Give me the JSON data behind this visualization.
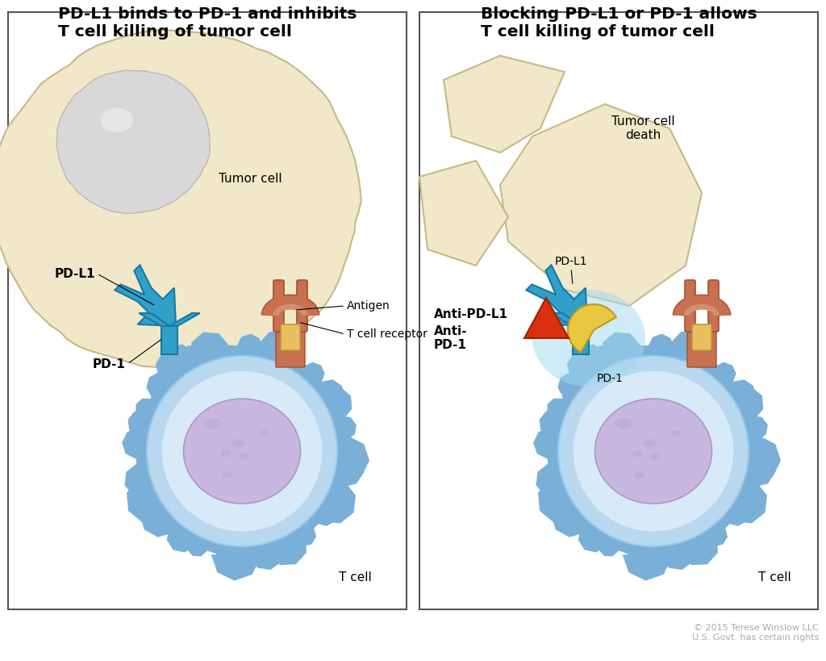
{
  "title_left": "PD-L1 binds to PD-1 and inhibits\nT cell killing of tumor cell",
  "title_right": "Blocking PD-L1 or PD-1 allows\nT cell killing of tumor cell",
  "copyright": "© 2015 Terese Winslow LLC\nU.S. Govt. has certain rights",
  "bg_color": "#ffffff",
  "panel_border_color": "#555555",
  "tumor_cell_fill": "#f0e8c8",
  "tumor_cell_edge": "#c8b888",
  "tumor_nucleus_fill": "#d8d8d8",
  "tumor_nucleus_edge": "#b8b8b8",
  "tcell_outer_fill": "#7ab0d8",
  "tcell_body_fill": "#b8d8f0",
  "tcell_ring_fill": "#d8eaf8",
  "tcell_nucleus_fill": "#c8b8e0",
  "tcell_nucleus_edge": "#a898c8",
  "pdl1_fill": "#30a0c8",
  "pdl1_edge": "#1878a0",
  "pd1_fill": "#30a0c8",
  "pd1_edge": "#1878a0",
  "receptor_fill": "#c87050",
  "receptor_edge": "#a05030",
  "receptor_inner": "#d09070",
  "antigen_fill": "#e8c060",
  "antigen_edge": "#c09840",
  "anti_pdl1_fill": "#e8c840",
  "anti_pdl1_edge": "#c09820",
  "anti_pd1_fill": "#d83010",
  "anti_pd1_edge": "#a02000",
  "glow_fill": "#a0d8f0"
}
